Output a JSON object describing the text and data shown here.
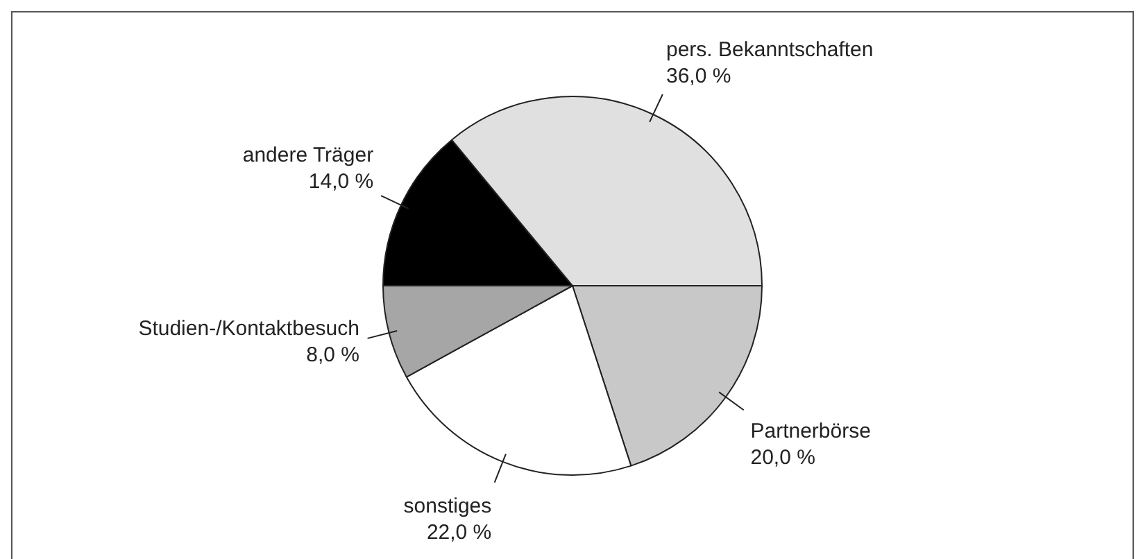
{
  "chart_data": {
    "type": "pie",
    "categories": [
      "Partnerbörse",
      "sonstiges",
      "Studien-/Kontaktbesuch",
      "andere Träger",
      "pers. Bekanntschaften"
    ],
    "values": [
      20,
      22,
      8,
      14,
      36
    ],
    "colors": [
      "#c8c8c8",
      "#ffffff",
      "#a6a6a6",
      "#000000",
      "#e0e0e0"
    ],
    "value_labels": [
      "20,0 %",
      "22,0 %",
      "8,0 %",
      "14,0 %",
      "36,0 %"
    ],
    "legend": false
  }
}
